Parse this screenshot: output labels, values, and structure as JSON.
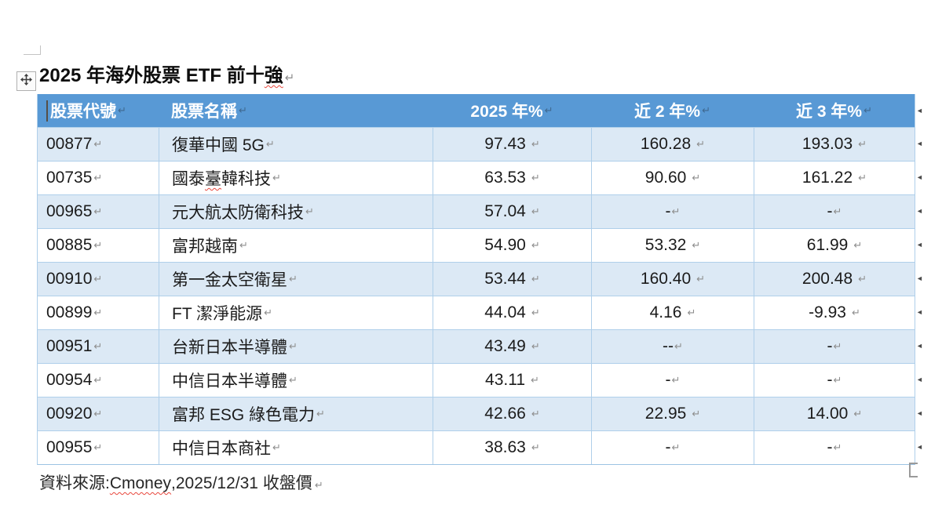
{
  "document": {
    "title": {
      "prefix": "2025 年海外股票 ETF 前十",
      "flagged": "強"
    },
    "source_note": {
      "prefix": "資料來源:",
      "flagged": "Cmoney",
      "suffix": ",2025/12/31 收盤價"
    }
  },
  "table": {
    "headers": [
      "股票代號",
      "股票名稱",
      "2025 年%",
      "近 2 年%",
      "近 3 年%"
    ],
    "rows": [
      {
        "code": "00877",
        "name": "復華中國 5G",
        "y2025": "97.43",
        "y2": "160.28",
        "y3": "193.03"
      },
      {
        "code": "00735",
        "name": "國泰臺韓科技",
        "flag": {
          "prefix": "國泰",
          "flagged": "臺",
          "suffix": "韓科技"
        },
        "y2025": "63.53",
        "y2": "90.60",
        "y3": "161.22"
      },
      {
        "code": "00965",
        "name": "元大航太防衛科技",
        "y2025": "57.04",
        "y2": "-",
        "y3": "-"
      },
      {
        "code": "00885",
        "name": "富邦越南",
        "y2025": "54.90",
        "y2": "53.32",
        "y3": "61.99"
      },
      {
        "code": "00910",
        "name": "第一金太空衛星",
        "y2025": "53.44",
        "y2": "160.40",
        "y3": "200.48"
      },
      {
        "code": "00899",
        "name": "FT 潔淨能源",
        "y2025": "44.04",
        "y2": "4.16",
        "y3": "-9.93"
      },
      {
        "code": "00951",
        "name": "台新日本半導體",
        "y2025": "43.49",
        "y2": "--",
        "y3": "-"
      },
      {
        "code": "00954",
        "name": "中信日本半導體",
        "y2025": "43.11",
        "y2": "-",
        "y3": "-"
      },
      {
        "code": "00920",
        "name": "富邦 ESG 綠色電力",
        "y2025": "42.66",
        "y2": "22.95",
        "y3": "14.00"
      },
      {
        "code": "00955",
        "name": "中信日本商社",
        "y2025": "38.63",
        "y2": "-",
        "y3": "-"
      }
    ]
  },
  "marks": {
    "paragraph_mark": "↵",
    "end_of_row_mark": "◄"
  },
  "colors": {
    "header_bg": "#5899D5",
    "band_bg": "#DCE9F5",
    "border": "#AFCFEA",
    "header_text": "#FFFFFF",
    "body_text": "#1B1B1B",
    "mark_gray": "#8E8E8E",
    "squiggle_red": "#E8473C"
  }
}
